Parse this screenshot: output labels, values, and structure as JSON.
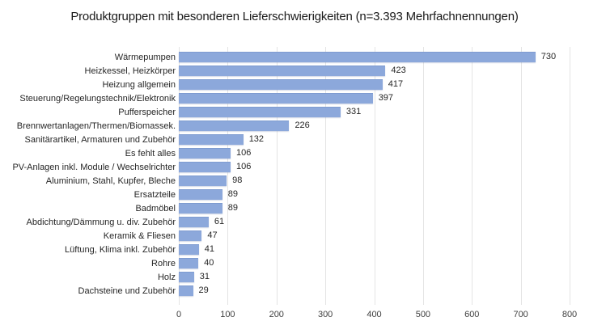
{
  "title": "Produktgruppen mit besonderen Lieferschwierigkeiten (n=3.393 Mehrfachnennungen)",
  "chart_data": {
    "type": "bar",
    "orientation": "horizontal",
    "title": "Produktgruppen mit besonderen Lieferschwierigkeiten (n=3.393 Mehrfachnennungen)",
    "categories": [
      "Wärmepumpen",
      "Heizkessel, Heizkörper",
      "Heizung allgemein",
      "Steuerung/Regelungstechnik/Elektronik",
      "Pufferspeicher",
      "Brennwertanlagen/Thermen/Biomassek.",
      "Sanitärartikel, Armaturen und Zubehör",
      "Es fehlt alles",
      "PV-Anlagen inkl. Module / Wechselrichter",
      "Aluminium, Stahl, Kupfer, Bleche",
      "Ersatzteile",
      "Badmöbel",
      "Abdichtung/Dämmung u. div. Zubehör",
      "Keramik & Fliesen",
      "Lüftung, Klima inkl. Zubehör",
      "Rohre",
      "Holz",
      "Dachsteine und Zubehör"
    ],
    "values": [
      730,
      423,
      417,
      397,
      331,
      226,
      132,
      106,
      106,
      98,
      89,
      89,
      61,
      47,
      41,
      40,
      31,
      29
    ],
    "x_ticks": [
      0,
      100,
      200,
      300,
      400,
      500,
      600,
      700,
      800
    ],
    "xlim": [
      0,
      800
    ],
    "xlabel": "",
    "ylabel": "",
    "legend": "none",
    "grid": "vertical",
    "bar_color": "#8ca8db",
    "gridline_color": "#e4e4e4",
    "data_labels": "outside-end"
  }
}
